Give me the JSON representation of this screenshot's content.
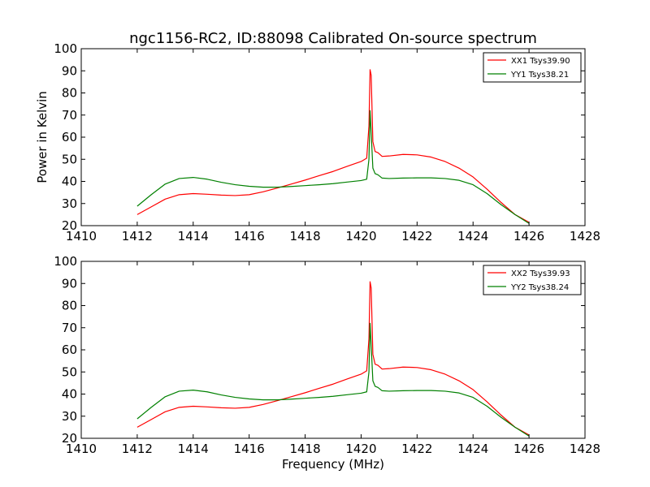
{
  "chart_data": [
    {
      "type": "line",
      "title": "ngc1156-RC2, ID:88098 Calibrated On-source spectrum",
      "xlabel": "",
      "ylabel": "Power in Kelvin",
      "xlim": [
        1410,
        1428
      ],
      "ylim": [
        20,
        100
      ],
      "xticks": [
        1410,
        1412,
        1414,
        1416,
        1418,
        1420,
        1422,
        1424,
        1426,
        1428
      ],
      "yticks": [
        20,
        30,
        40,
        50,
        60,
        70,
        80,
        90,
        100
      ],
      "grid": false,
      "legend_position": "top-right",
      "series": [
        {
          "name": "XX1 Tsys39.90",
          "color": "#ff0000",
          "x": [
            1412.0,
            1412.5,
            1413.0,
            1413.5,
            1414.0,
            1414.5,
            1415.0,
            1415.5,
            1416.0,
            1416.5,
            1417.0,
            1417.5,
            1418.0,
            1418.5,
            1419.0,
            1419.5,
            1420.0,
            1420.2,
            1420.28,
            1420.32,
            1420.36,
            1420.42,
            1420.5,
            1420.6,
            1420.75,
            1421.0,
            1421.5,
            1422.0,
            1422.5,
            1423.0,
            1423.5,
            1424.0,
            1424.5,
            1425.0,
            1425.5,
            1426.0
          ],
          "y": [
            25,
            28.5,
            32,
            34,
            34.5,
            34.2,
            33.8,
            33.6,
            34,
            35.3,
            37,
            38.8,
            40.6,
            42.6,
            44.5,
            46.8,
            49,
            50.5,
            65,
            90.5,
            88,
            58,
            53.5,
            53,
            51.3,
            51.5,
            52.2,
            52,
            51,
            49,
            46,
            42,
            36.5,
            30.5,
            25,
            21.5
          ]
        },
        {
          "name": "YY1 Tsys38.21",
          "color": "#008000",
          "x": [
            1412.0,
            1412.5,
            1413.0,
            1413.5,
            1414.0,
            1414.5,
            1415.0,
            1415.5,
            1416.0,
            1416.5,
            1417.0,
            1417.5,
            1418.0,
            1418.5,
            1419.0,
            1419.5,
            1420.0,
            1420.2,
            1420.28,
            1420.32,
            1420.36,
            1420.42,
            1420.5,
            1420.6,
            1420.75,
            1421.0,
            1421.5,
            1422.0,
            1422.5,
            1423.0,
            1423.5,
            1424.0,
            1424.5,
            1425.0,
            1425.5,
            1426.0
          ],
          "y": [
            28.8,
            34,
            38.8,
            41.3,
            41.8,
            41,
            39.6,
            38.5,
            37.8,
            37.4,
            37.4,
            37.7,
            38.1,
            38.5,
            39,
            39.7,
            40.4,
            41,
            50,
            72,
            62,
            46,
            43.5,
            43,
            41.5,
            41.3,
            41.5,
            41.6,
            41.6,
            41.3,
            40.5,
            38.5,
            34.5,
            29.5,
            25,
            21
          ]
        }
      ]
    },
    {
      "type": "line",
      "title": "",
      "xlabel": "Frequency (MHz)",
      "ylabel": "",
      "xlim": [
        1410,
        1428
      ],
      "ylim": [
        20,
        100
      ],
      "xticks": [
        1410,
        1412,
        1414,
        1416,
        1418,
        1420,
        1422,
        1424,
        1426,
        1428
      ],
      "yticks": [
        20,
        30,
        40,
        50,
        60,
        70,
        80,
        90,
        100
      ],
      "grid": false,
      "legend_position": "top-right",
      "series": [
        {
          "name": "XX2 Tsys39.93",
          "color": "#ff0000",
          "x": [
            1412.0,
            1412.5,
            1413.0,
            1413.5,
            1414.0,
            1414.5,
            1415.0,
            1415.5,
            1416.0,
            1416.5,
            1417.0,
            1417.5,
            1418.0,
            1418.5,
            1419.0,
            1419.5,
            1420.0,
            1420.2,
            1420.28,
            1420.32,
            1420.36,
            1420.42,
            1420.5,
            1420.6,
            1420.75,
            1421.0,
            1421.5,
            1422.0,
            1422.5,
            1423.0,
            1423.5,
            1424.0,
            1424.5,
            1425.0,
            1425.5,
            1426.0
          ],
          "y": [
            25,
            28.5,
            32,
            34,
            34.5,
            34.2,
            33.8,
            33.6,
            34,
            35.3,
            37,
            38.8,
            40.6,
            42.6,
            44.5,
            46.8,
            49,
            50.5,
            65,
            90.8,
            88,
            58,
            53.5,
            53,
            51.3,
            51.5,
            52.2,
            52,
            51,
            49,
            46,
            42,
            36.5,
            30.5,
            25,
            21.5
          ]
        },
        {
          "name": "YY2 Tsys38.24",
          "color": "#008000",
          "x": [
            1412.0,
            1412.5,
            1413.0,
            1413.5,
            1414.0,
            1414.5,
            1415.0,
            1415.5,
            1416.0,
            1416.5,
            1417.0,
            1417.5,
            1418.0,
            1418.5,
            1419.0,
            1419.5,
            1420.0,
            1420.2,
            1420.28,
            1420.32,
            1420.36,
            1420.42,
            1420.5,
            1420.6,
            1420.75,
            1421.0,
            1421.5,
            1422.0,
            1422.5,
            1423.0,
            1423.5,
            1424.0,
            1424.5,
            1425.0,
            1425.5,
            1426.0
          ],
          "y": [
            28.8,
            34,
            38.8,
            41.3,
            41.8,
            41,
            39.6,
            38.5,
            37.8,
            37.4,
            37.4,
            37.7,
            38.1,
            38.5,
            39,
            39.7,
            40.4,
            41,
            50,
            72,
            62,
            46,
            43.5,
            43,
            41.5,
            41.3,
            41.5,
            41.6,
            41.6,
            41.3,
            40.5,
            38.5,
            34.5,
            29.5,
            25,
            21
          ]
        }
      ]
    }
  ]
}
